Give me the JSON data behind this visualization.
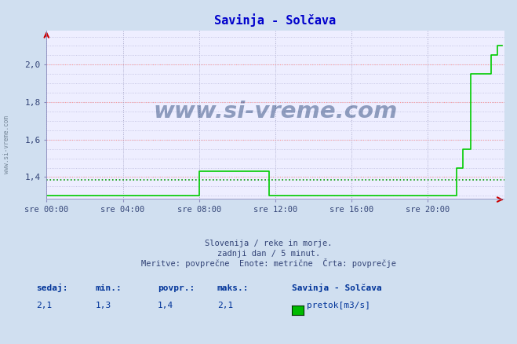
{
  "title": "Savinja - Solčava",
  "background_color": "#d0dff0",
  "plot_background": "#eeeeff",
  "grid_color_major": "#ff9999",
  "grid_color_minor": "#bbbbdd",
  "xlim": [
    0,
    288
  ],
  "ylim": [
    1.28,
    2.18
  ],
  "yticks": [
    1.4,
    1.6,
    1.8,
    2.0
  ],
  "xtick_labels": [
    "sre 00:00",
    "sre 04:00",
    "sre 08:00",
    "sre 12:00",
    "sre 16:00",
    "sre 20:00"
  ],
  "xtick_positions": [
    0,
    48,
    96,
    144,
    192,
    240
  ],
  "line_color": "#00cc00",
  "avg_line_color": "#009900",
  "avg_value": 1.385,
  "subtitle1": "Slovenija / reke in morje.",
  "subtitle2": "zadnji dan / 5 minut.",
  "subtitle3": "Meritve: povprečne  Enote: metrične  Črta: povprečje",
  "footer_label1": "sedaj:",
  "footer_label2": "min.:",
  "footer_label3": "povpr.:",
  "footer_label4": "maks.:",
  "footer_val1": "2,1",
  "footer_val2": "1,3",
  "footer_val3": "1,4",
  "footer_val4": "2,1",
  "legend_title": "Savinja - Solčava",
  "legend_color": "#00bb00",
  "legend_label": "pretok[m3/s]",
  "watermark": "www.si-vreme.com",
  "title_color": "#0000cc",
  "axis_color": "#8888bb",
  "text_color": "#334477",
  "footer_color": "#003399",
  "vgrid_color": "#aaaacc"
}
